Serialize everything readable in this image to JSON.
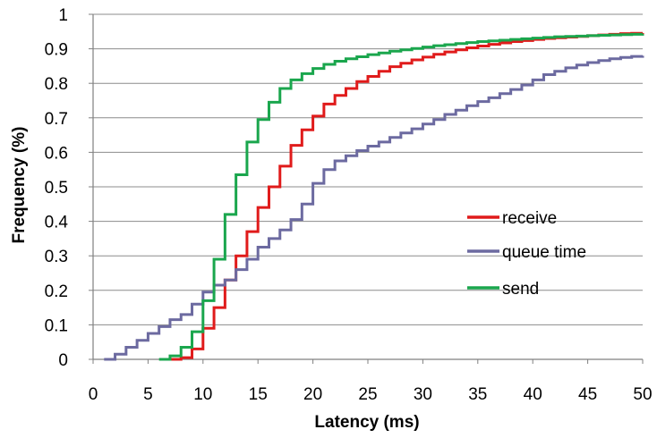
{
  "chart_data": {
    "type": "line",
    "xlabel": "Latency (ms)",
    "ylabel": "Frequency (%)",
    "xlim": [
      0,
      50
    ],
    "ylim": [
      0,
      1
    ],
    "xticks": [
      0,
      5,
      10,
      15,
      20,
      25,
      30,
      35,
      40,
      45,
      50
    ],
    "yticks": [
      0,
      0.1,
      0.2,
      0.3,
      0.4,
      0.5,
      0.6,
      0.7,
      0.8,
      0.9,
      1
    ],
    "grid": "horizontal",
    "legend_position": "right-middle",
    "step": true,
    "series": [
      {
        "name": "receive",
        "color": "#e01b1b",
        "x": [
          7,
          8,
          9,
          10,
          11,
          12,
          13,
          14,
          15,
          16,
          17,
          18,
          19,
          20,
          21,
          22,
          23,
          24,
          25,
          26,
          27,
          28,
          29,
          30,
          31,
          32,
          33,
          34,
          35,
          36,
          37,
          38,
          39,
          40,
          41,
          42,
          43,
          44,
          45,
          46,
          47,
          48,
          49,
          50
        ],
        "y": [
          0,
          0.005,
          0.03,
          0.09,
          0.15,
          0.23,
          0.3,
          0.37,
          0.44,
          0.5,
          0.56,
          0.62,
          0.665,
          0.705,
          0.74,
          0.765,
          0.785,
          0.805,
          0.82,
          0.835,
          0.848,
          0.858,
          0.868,
          0.876,
          0.884,
          0.891,
          0.897,
          0.903,
          0.908,
          0.913,
          0.917,
          0.921,
          0.924,
          0.927,
          0.93,
          0.932,
          0.934,
          0.936,
          0.938,
          0.94,
          0.942,
          0.944,
          0.945,
          0.946
        ]
      },
      {
        "name": "queue time",
        "color": "#6c6aa0",
        "x": [
          1,
          2,
          3,
          4,
          5,
          6,
          7,
          8,
          9,
          10,
          11,
          12,
          13,
          14,
          15,
          16,
          17,
          18,
          19,
          20,
          21,
          22,
          23,
          24,
          25,
          26,
          27,
          28,
          29,
          30,
          31,
          32,
          33,
          34,
          35,
          36,
          37,
          38,
          39,
          40,
          41,
          42,
          43,
          44,
          45,
          46,
          47,
          48,
          49,
          50
        ],
        "y": [
          0,
          0.015,
          0.035,
          0.055,
          0.075,
          0.095,
          0.115,
          0.13,
          0.16,
          0.195,
          0.215,
          0.23,
          0.26,
          0.29,
          0.325,
          0.35,
          0.375,
          0.405,
          0.45,
          0.51,
          0.55,
          0.575,
          0.59,
          0.605,
          0.618,
          0.63,
          0.643,
          0.656,
          0.668,
          0.682,
          0.695,
          0.71,
          0.722,
          0.735,
          0.747,
          0.758,
          0.77,
          0.782,
          0.795,
          0.81,
          0.825,
          0.835,
          0.845,
          0.853,
          0.86,
          0.866,
          0.871,
          0.875,
          0.878,
          0.88
        ]
      },
      {
        "name": "send",
        "color": "#1aa64d",
        "x": [
          6,
          7,
          8,
          9,
          10,
          11,
          12,
          13,
          14,
          15,
          16,
          17,
          18,
          19,
          20,
          21,
          22,
          23,
          24,
          25,
          26,
          27,
          28,
          29,
          30,
          31,
          32,
          33,
          34,
          35,
          36,
          37,
          38,
          39,
          40,
          41,
          42,
          43,
          44,
          45,
          46,
          47,
          48,
          49,
          50
        ],
        "y": [
          0,
          0.01,
          0.035,
          0.08,
          0.17,
          0.29,
          0.42,
          0.535,
          0.63,
          0.695,
          0.745,
          0.785,
          0.81,
          0.828,
          0.843,
          0.855,
          0.864,
          0.871,
          0.877,
          0.883,
          0.888,
          0.893,
          0.897,
          0.901,
          0.905,
          0.909,
          0.912,
          0.915,
          0.918,
          0.921,
          0.923,
          0.925,
          0.927,
          0.929,
          0.931,
          0.933,
          0.935,
          0.936,
          0.937,
          0.938,
          0.939,
          0.94,
          0.941,
          0.942,
          0.943
        ]
      }
    ]
  }
}
